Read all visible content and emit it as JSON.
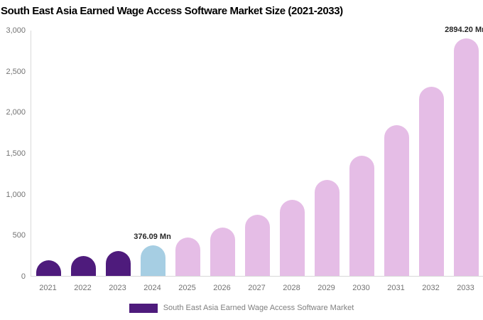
{
  "title": "South East Asia Earned Wage Access Software Market Size (2021-2033)",
  "legend": {
    "label": "South East Asia Earned Wage Access Software Market",
    "swatch_color": "#4E1B7C"
  },
  "colors": {
    "historical_bar": "#4E1B7C",
    "highlight_bar": "#A6CEE3",
    "forecast_bar": "#E5BDE6",
    "axis_line": "#D9D9D9",
    "tick_label": "#737373",
    "data_label": "#262626",
    "title": "#000000",
    "background": "#FFFFFF"
  },
  "chart_data": {
    "type": "bar",
    "title": "South East Asia Earned Wage Access Software Market Size (2021-2033)",
    "xlabel": "",
    "ylabel": "",
    "unit": "Mn",
    "grid": false,
    "legend_position": "bottom",
    "ylim": [
      0,
      3000
    ],
    "yticks": [
      {
        "value": 0,
        "label": "0"
      },
      {
        "value": 500,
        "label": "500"
      },
      {
        "value": 1000,
        "label": "1,000"
      },
      {
        "value": 1500,
        "label": "1,500"
      },
      {
        "value": 2000,
        "label": "2,000"
      },
      {
        "value": 2500,
        "label": "2,500"
      },
      {
        "value": 3000,
        "label": "3,000"
      }
    ],
    "categories": [
      "2021",
      "2022",
      "2023",
      "2024",
      "2025",
      "2026",
      "2027",
      "2028",
      "2029",
      "2030",
      "2031",
      "2032",
      "2033"
    ],
    "values": [
      190,
      239,
      300,
      376.09,
      472,
      592,
      743,
      932,
      1169,
      1466,
      1839,
      2308,
      2894.2
    ],
    "bar_colors": [
      "#4E1B7C",
      "#4E1B7C",
      "#4E1B7C",
      "#A6CEE3",
      "#E5BDE6",
      "#E5BDE6",
      "#E5BDE6",
      "#E5BDE6",
      "#E5BDE6",
      "#E5BDE6",
      "#E5BDE6",
      "#E5BDE6",
      "#E5BDE6"
    ],
    "data_labels": [
      {
        "index": 3,
        "text": "376.09 Mn"
      },
      {
        "index": 12,
        "text": "2894.20 Mn"
      }
    ]
  }
}
